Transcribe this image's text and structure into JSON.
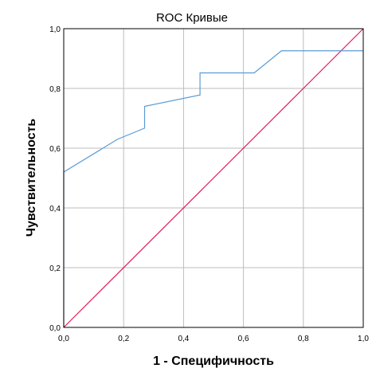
{
  "chart_data": {
    "type": "line",
    "title": "ROC Кривые",
    "xlabel": "1 - Специфичность",
    "ylabel": "Чувствительность",
    "xlim": [
      0,
      1
    ],
    "ylim": [
      0,
      1
    ],
    "x_ticks": [
      "0,0",
      "0,2",
      "0,4",
      "0,6",
      "0,8",
      "1,0"
    ],
    "y_ticks": [
      "0,0",
      "0,2",
      "0,4",
      "0,6",
      "0,8",
      "1,0"
    ],
    "grid": true,
    "colors": {
      "roc": "#5b9bd5",
      "reference": "#e0195a"
    },
    "series": [
      {
        "values": [
          [
            0.0,
            0.0
          ],
          [
            0.0,
            0.52
          ],
          [
            0.18,
            0.63
          ],
          [
            0.27,
            0.667
          ],
          [
            0.27,
            0.74
          ],
          [
            0.455,
            0.778
          ],
          [
            0.455,
            0.852
          ],
          [
            0.636,
            0.852
          ],
          [
            0.727,
            0.926
          ],
          [
            1.0,
            0.926
          ]
        ]
      },
      {
        "values": [
          [
            0.0,
            0.0
          ],
          [
            1.0,
            1.0
          ]
        ]
      }
    ]
  }
}
